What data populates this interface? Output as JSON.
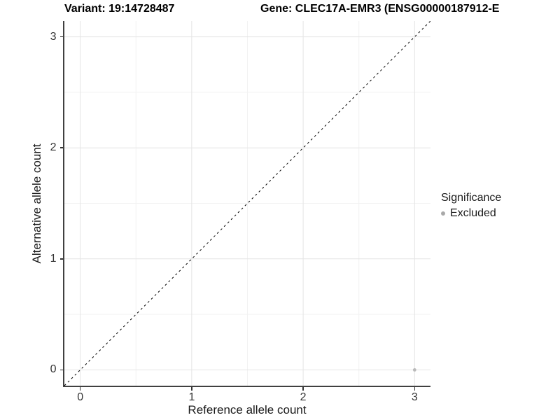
{
  "titles": {
    "left": "Variant: 19:14728487",
    "right": "Gene: CLEC17A-EMR3 (ENSG00000187912-E"
  },
  "chart_data": {
    "type": "scatter",
    "xlabel": "Reference allele count",
    "ylabel": "Alternative allele count",
    "xlim": [
      -0.1425,
      3.1425
    ],
    "ylim": [
      -0.1425,
      3.1425
    ],
    "xticks": [
      0,
      1,
      2,
      3
    ],
    "yticks": [
      0,
      1,
      2,
      3
    ],
    "grid": {
      "major_positions": [
        0,
        1,
        2,
        3
      ],
      "minor_positions": [
        0.5,
        1.5,
        2.5
      ],
      "major_color": "#e4e4e4",
      "minor_color": "#f2f2f2"
    },
    "identity_line": {
      "x1": -0.1425,
      "y1": -0.1425,
      "x2": 3.1425,
      "y2": 3.1425,
      "style": "dashed",
      "color": "#000000"
    },
    "series": [
      {
        "name": "Excluded",
        "color": "#b9b9b9",
        "points": [
          {
            "x": 3,
            "y": 0
          }
        ]
      }
    ],
    "legend": {
      "title": "Significance",
      "position": "right",
      "items": [
        {
          "label": "Excluded",
          "color": "#a9a9a9"
        }
      ]
    },
    "axis": {
      "line_color": "#404040",
      "tick_color": "#333333"
    }
  }
}
